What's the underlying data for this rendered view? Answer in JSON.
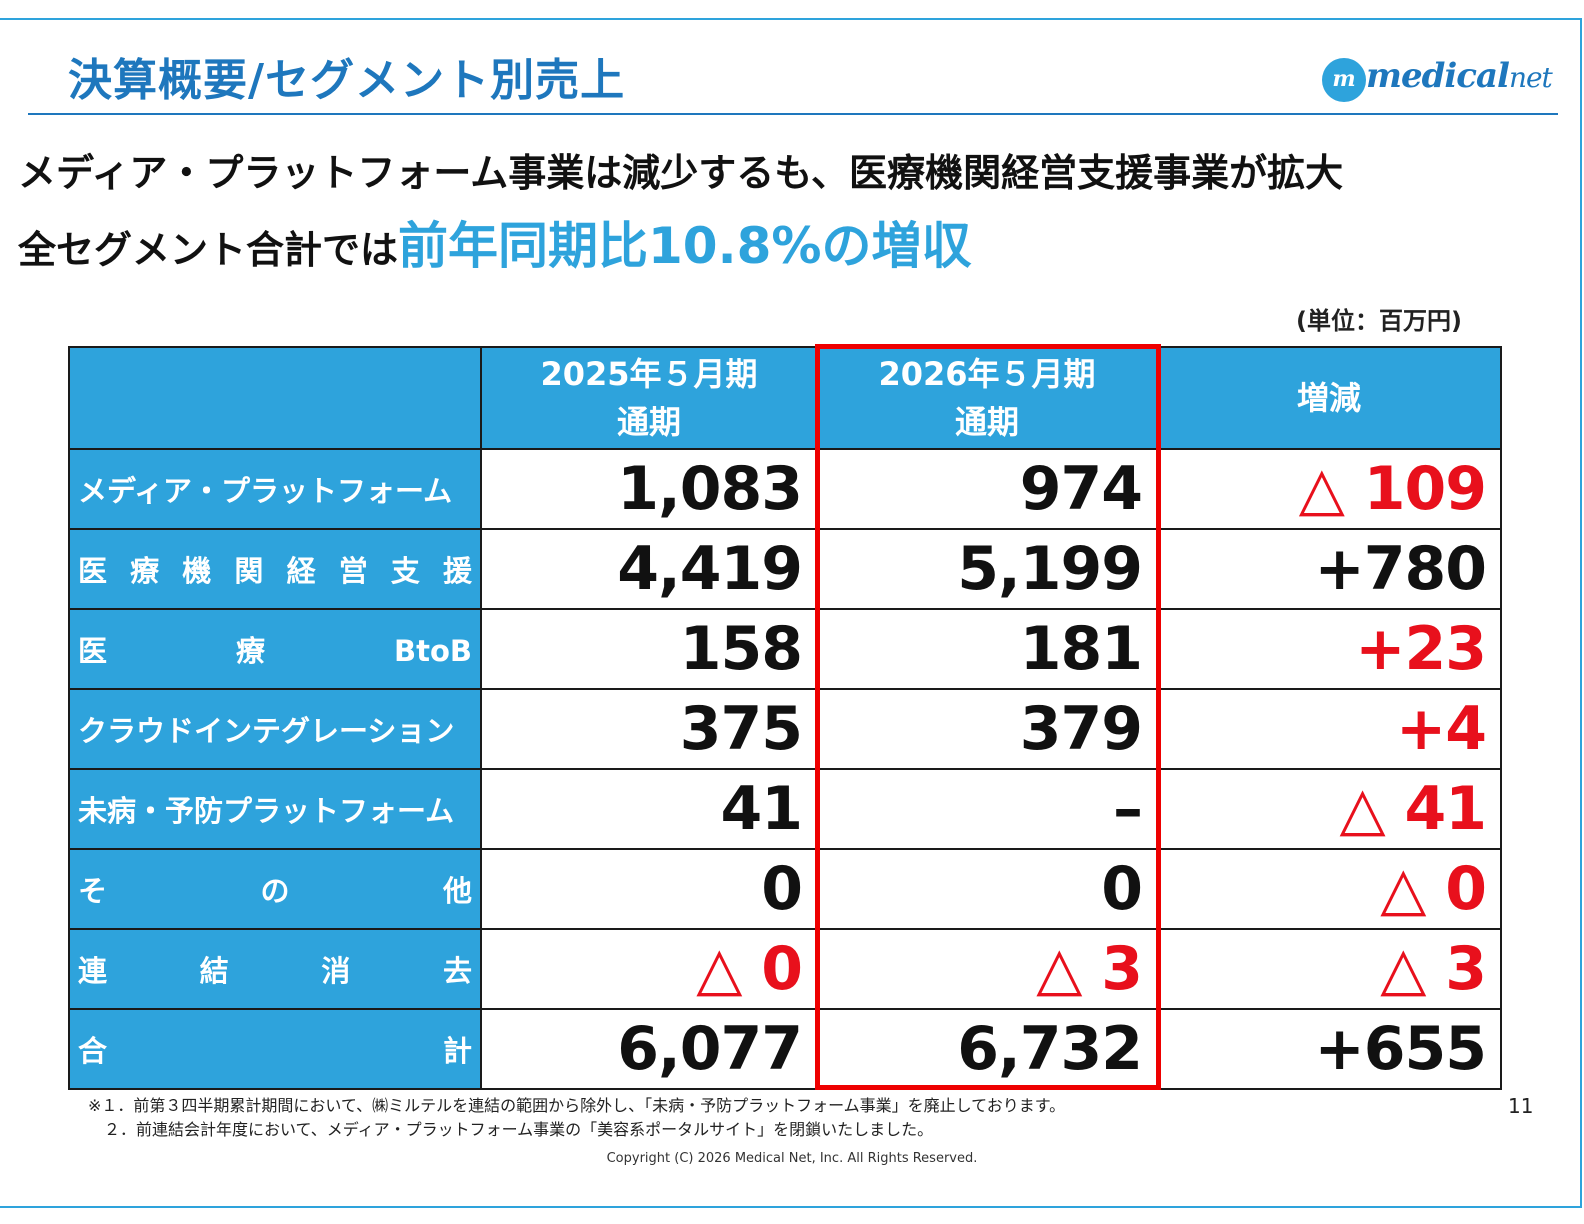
{
  "slide": {
    "title": "決算概要/セグメント別売上",
    "logo_text": "medical",
    "logo_text_net": "net",
    "logo_mark": "m"
  },
  "headline": {
    "line1": "メディア・プラットフォーム事業は減少するも、医療機関経営支援事業が拡大",
    "line2_prefix": "全セグメント合計では",
    "line2_emphasis": "前年同期比10.8%の増収"
  },
  "unit_note": "(単位：百万円)",
  "table": {
    "headers": [
      {
        "line1": "",
        "line2": ""
      },
      {
        "line1": "2025年５月期",
        "line2": "通期"
      },
      {
        "line1": "2026年５月期",
        "line2": "通期"
      },
      {
        "line1": "増減",
        "line2": ""
      }
    ],
    "rows": [
      {
        "segment": "メディア・プラットフォーム",
        "fy2025": "1,083",
        "fy2026": "974",
        "change": "△ 109",
        "fy2025_red": false,
        "fy2026_red": false,
        "change_red": true
      },
      {
        "segment": "医療機関経営支援",
        "fy2025": "4,419",
        "fy2026": "5,199",
        "change": "+780",
        "fy2025_red": false,
        "fy2026_red": false,
        "change_red": false
      },
      {
        "segment": "医療BtoB",
        "fy2025": "158",
        "fy2026": "181",
        "change": "+23",
        "fy2025_red": false,
        "fy2026_red": false,
        "change_red": true
      },
      {
        "segment": "クラウドインテグレーション",
        "fy2025": "375",
        "fy2026": "379",
        "change": "+4",
        "fy2025_red": false,
        "fy2026_red": false,
        "change_red": true
      },
      {
        "segment": "未病・予防プラットフォーム",
        "fy2025": "41",
        "fy2026": "–",
        "change": "△ 41",
        "fy2025_red": false,
        "fy2026_red": false,
        "change_red": true
      },
      {
        "segment": "その他",
        "fy2025": "0",
        "fy2026": "0",
        "change": "△ 0",
        "fy2025_red": false,
        "fy2026_red": false,
        "change_red": true
      },
      {
        "segment": "連結消去",
        "fy2025": "△ 0",
        "fy2026": "△ 3",
        "change": "△ 3",
        "fy2025_red": true,
        "fy2026_red": true,
        "change_red": true
      },
      {
        "segment": "合計",
        "fy2025": "6,077",
        "fy2026": "6,732",
        "change": "+655",
        "fy2025_red": false,
        "fy2026_red": false,
        "change_red": false
      }
    ]
  },
  "notes": [
    "※１．前第３四半期累計期間において、㈱ミルテルを連結の範囲から除外し、「未病・予防プラットフォーム事業」を廃止しております。",
    "　２．前連結会計年度において、メディア・プラットフォーム事業の「美容系ポータルサイト」を閉鎖いたしました。"
  ],
  "page_number": "11",
  "copyright": "Copyright (C) 2026 Medical Net, Inc. All Rights Reserved.",
  "colors": {
    "accent_blue": "#2ea3dc",
    "title_blue": "#1e77bd",
    "negative_red": "#e8101c",
    "highlight_red": "#ee0000"
  }
}
